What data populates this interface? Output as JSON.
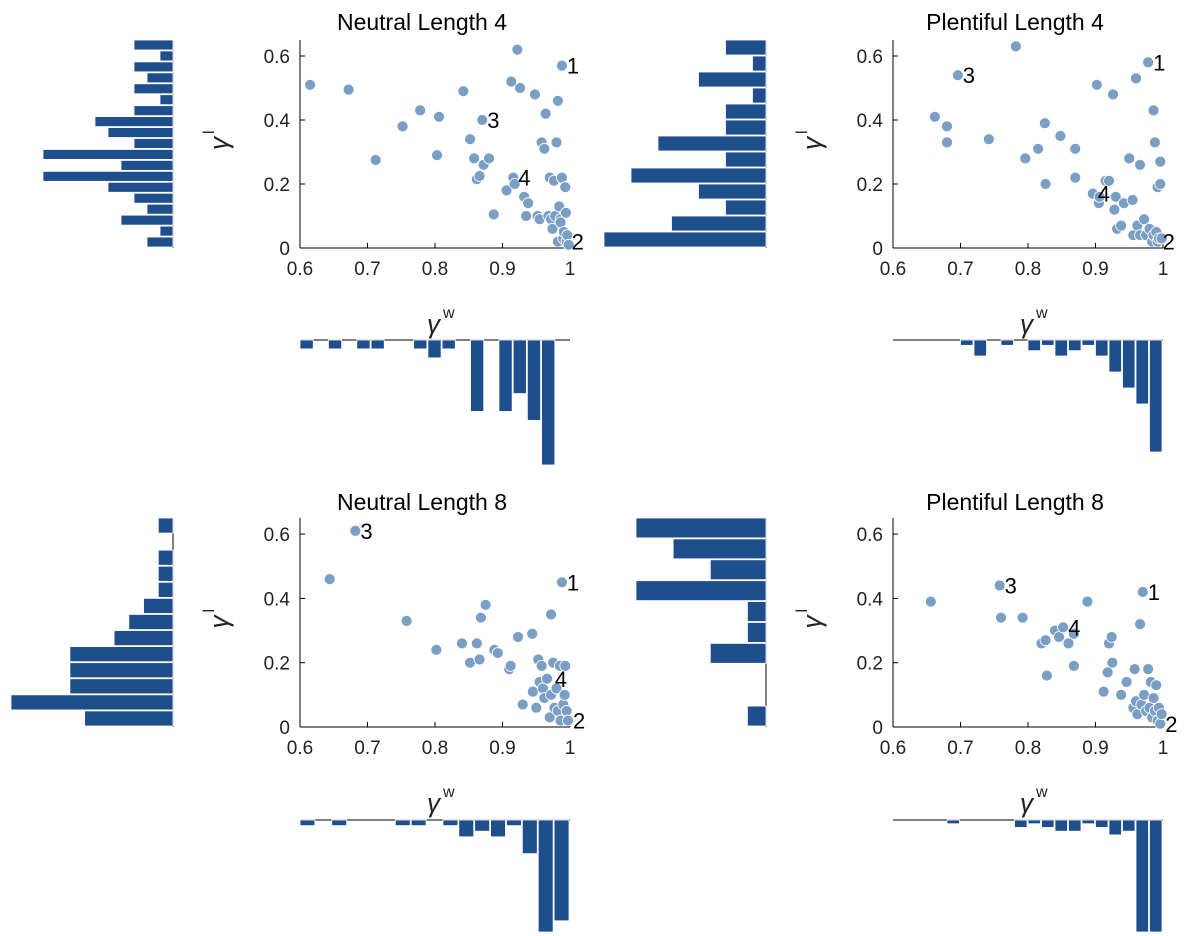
{
  "figure": {
    "panels": [
      {
        "title": "Neutral Length 4"
      },
      {
        "title": "Plentiful Length 4"
      },
      {
        "title": "Neutral Length 8"
      },
      {
        "title": "Plentiful Length 8"
      }
    ]
  },
  "chart_data": [
    {
      "type": "scatter",
      "title": "Neutral Length 4",
      "xlabel": "γ^w",
      "ylabel": "γ^l",
      "xlim": [
        0.6,
        1.0
      ],
      "ylim": [
        0,
        0.65
      ],
      "xticks": [
        "0.6",
        "0.7",
        "0.8",
        "0.9",
        "1"
      ],
      "yticks": [
        "0",
        "0.2",
        "0.4",
        "0.6"
      ],
      "grid": false,
      "marker_color": "#7b9fc4",
      "hist_color": "#1f4e8c",
      "points": [
        [
          0.615,
          0.51
        ],
        [
          0.672,
          0.495
        ],
        [
          0.712,
          0.275
        ],
        [
          0.752,
          0.38
        ],
        [
          0.778,
          0.43
        ],
        [
          0.803,
          0.29
        ],
        [
          0.806,
          0.41
        ],
        [
          0.842,
          0.49
        ],
        [
          0.852,
          0.34
        ],
        [
          0.858,
          0.28
        ],
        [
          0.862,
          0.215
        ],
        [
          0.866,
          0.225
        ],
        [
          0.87,
          0.4
        ],
        [
          0.872,
          0.26
        ],
        [
          0.88,
          0.28
        ],
        [
          0.887,
          0.105
        ],
        [
          0.906,
          0.18
        ],
        [
          0.913,
          0.52
        ],
        [
          0.916,
          0.22
        ],
        [
          0.918,
          0.2
        ],
        [
          0.922,
          0.62
        ],
        [
          0.926,
          0.5
        ],
        [
          0.932,
          0.16
        ],
        [
          0.935,
          0.1
        ],
        [
          0.938,
          0.14
        ],
        [
          0.948,
          0.48
        ],
        [
          0.952,
          0.1
        ],
        [
          0.955,
          0.09
        ],
        [
          0.958,
          0.33
        ],
        [
          0.962,
          0.31
        ],
        [
          0.964,
          0.42
        ],
        [
          0.968,
          0.1
        ],
        [
          0.97,
          0.22
        ],
        [
          0.972,
          0.09
        ],
        [
          0.974,
          0.06
        ],
        [
          0.976,
          0.21
        ],
        [
          0.978,
          0.1
        ],
        [
          0.98,
          0.33
        ],
        [
          0.982,
          0.46
        ],
        [
          0.982,
          0.02
        ],
        [
          0.984,
          0.13
        ],
        [
          0.986,
          0.09
        ],
        [
          0.986,
          0.08
        ],
        [
          0.988,
          0.57
        ],
        [
          0.988,
          0.22
        ],
        [
          0.99,
          0.03
        ],
        [
          0.991,
          0.05
        ],
        [
          0.993,
          0.19
        ],
        [
          0.994,
          0.11
        ],
        [
          0.995,
          0.02
        ],
        [
          0.996,
          0.04
        ],
        [
          0.998,
          0.01
        ]
      ],
      "annotations": [
        {
          "label": "1",
          "x": 0.988,
          "y": 0.57
        },
        {
          "label": "2",
          "x": 0.995,
          "y": 0.02
        },
        {
          "label": "3",
          "x": 0.87,
          "y": 0.4
        },
        {
          "label": "4",
          "x": 0.916,
          "y": 0.22
        }
      ],
      "hist_x": [
        1,
        0,
        1,
        0,
        1,
        1,
        0,
        0,
        1,
        2,
        1,
        0,
        8,
        0,
        8,
        6,
        9,
        14,
        0
      ],
      "hist_y": [
        3,
        1,
        3,
        2,
        3,
        1,
        3,
        6,
        5,
        3,
        10,
        4,
        10,
        5,
        3,
        2,
        4,
        1,
        2
      ]
    },
    {
      "type": "scatter",
      "title": "Plentiful Length 4",
      "xlabel": "γ^w",
      "ylabel": "γ^l",
      "xlim": [
        0.6,
        1.0
      ],
      "ylim": [
        0,
        0.65
      ],
      "xticks": [
        "0.6",
        "0.7",
        "0.8",
        "0.9",
        "1"
      ],
      "yticks": [
        "0",
        "0.2",
        "0.4",
        "0.6"
      ],
      "grid": false,
      "marker_color": "#7b9fc4",
      "hist_color": "#1f4e8c",
      "points": [
        [
          0.662,
          0.41
        ],
        [
          0.68,
          0.38
        ],
        [
          0.68,
          0.33
        ],
        [
          0.696,
          0.54
        ],
        [
          0.742,
          0.34
        ],
        [
          0.782,
          0.63
        ],
        [
          0.796,
          0.28
        ],
        [
          0.815,
          0.31
        ],
        [
          0.825,
          0.39
        ],
        [
          0.826,
          0.2
        ],
        [
          0.848,
          0.35
        ],
        [
          0.87,
          0.31
        ],
        [
          0.87,
          0.22
        ],
        [
          0.896,
          0.17
        ],
        [
          0.902,
          0.51
        ],
        [
          0.905,
          0.14
        ],
        [
          0.906,
          0.16
        ],
        [
          0.915,
          0.21
        ],
        [
          0.92,
          0.21
        ],
        [
          0.926,
          0.48
        ],
        [
          0.928,
          0.12
        ],
        [
          0.93,
          0.16
        ],
        [
          0.932,
          0.06
        ],
        [
          0.938,
          0.07
        ],
        [
          0.942,
          0.14
        ],
        [
          0.95,
          0.28
        ],
        [
          0.955,
          0.15
        ],
        [
          0.956,
          0.04
        ],
        [
          0.96,
          0.53
        ],
        [
          0.962,
          0.07
        ],
        [
          0.966,
          0.26
        ],
        [
          0.966,
          0.04
        ],
        [
          0.972,
          0.09
        ],
        [
          0.975,
          0.04
        ],
        [
          0.978,
          0.58
        ],
        [
          0.98,
          0.06
        ],
        [
          0.984,
          0.02
        ],
        [
          0.986,
          0.43
        ],
        [
          0.986,
          0.04
        ],
        [
          0.988,
          0.33
        ],
        [
          0.99,
          0.05
        ],
        [
          0.992,
          0.02
        ],
        [
          0.992,
          0.19
        ],
        [
          0.994,
          0.03
        ],
        [
          0.996,
          0.2
        ],
        [
          0.996,
          0.27
        ],
        [
          0.998,
          0.03
        ]
      ],
      "annotations": [
        {
          "label": "1",
          "x": 0.978,
          "y": 0.58
        },
        {
          "label": "2",
          "x": 0.992,
          "y": 0.02
        },
        {
          "label": "3",
          "x": 0.696,
          "y": 0.54
        },
        {
          "label": "4",
          "x": 0.896,
          "y": 0.17
        }
      ],
      "hist_x": [
        0,
        0,
        0,
        0,
        0,
        1,
        3,
        0,
        1,
        0,
        2,
        1,
        3,
        2,
        1,
        3,
        6,
        9,
        12,
        21
      ],
      "hist_y": [
        3,
        1,
        5,
        1,
        3,
        3,
        8,
        3,
        10,
        5,
        3,
        7,
        12
      ]
    },
    {
      "type": "scatter",
      "title": "Neutral Length 8",
      "xlabel": "γ^w",
      "ylabel": "γ^l",
      "xlim": [
        0.6,
        1.0
      ],
      "ylim": [
        0,
        0.65
      ],
      "xticks": [
        "0.6",
        "0.7",
        "0.8",
        "0.9",
        "1"
      ],
      "yticks": [
        "0",
        "0.2",
        "0.4",
        "0.6"
      ],
      "grid": false,
      "marker_color": "#7b9fc4",
      "hist_color": "#1f4e8c",
      "points": [
        [
          0.644,
          0.46
        ],
        [
          0.682,
          0.61
        ],
        [
          0.758,
          0.33
        ],
        [
          0.802,
          0.24
        ],
        [
          0.84,
          0.26
        ],
        [
          0.852,
          0.2
        ],
        [
          0.862,
          0.26
        ],
        [
          0.866,
          0.21
        ],
        [
          0.868,
          0.34
        ],
        [
          0.875,
          0.38
        ],
        [
          0.888,
          0.24
        ],
        [
          0.893,
          0.23
        ],
        [
          0.91,
          0.18
        ],
        [
          0.912,
          0.19
        ],
        [
          0.923,
          0.28
        ],
        [
          0.93,
          0.07
        ],
        [
          0.944,
          0.29
        ],
        [
          0.945,
          0.11
        ],
        [
          0.95,
          0.06
        ],
        [
          0.953,
          0.21
        ],
        [
          0.955,
          0.14
        ],
        [
          0.958,
          0.19
        ],
        [
          0.96,
          0.12
        ],
        [
          0.962,
          0.09
        ],
        [
          0.966,
          0.15
        ],
        [
          0.97,
          0.03
        ],
        [
          0.972,
          0.35
        ],
        [
          0.972,
          0.1
        ],
        [
          0.975,
          0.2
        ],
        [
          0.977,
          0.06
        ],
        [
          0.98,
          0.12
        ],
        [
          0.982,
          0.05
        ],
        [
          0.985,
          0.19
        ],
        [
          0.986,
          0.02
        ],
        [
          0.988,
          0.45
        ],
        [
          0.99,
          0.07
        ],
        [
          0.992,
          0.1
        ],
        [
          0.993,
          0.19
        ],
        [
          0.995,
          0.05
        ],
        [
          0.997,
          0.02
        ]
      ],
      "annotations": [
        {
          "label": "1",
          "x": 0.988,
          "y": 0.45
        },
        {
          "label": "2",
          "x": 0.997,
          "y": 0.02
        },
        {
          "label": "3",
          "x": 0.682,
          "y": 0.61
        },
        {
          "label": "4",
          "x": 0.97,
          "y": 0.15
        }
      ],
      "hist_x": [
        1,
        0,
        1,
        0,
        0,
        0,
        1,
        1,
        0,
        1,
        3,
        2,
        3,
        1,
        6,
        20,
        18
      ],
      "hist_y": [
        1,
        0,
        1,
        1,
        1,
        2,
        3,
        4,
        7,
        7,
        7,
        11,
        6
      ]
    },
    {
      "type": "scatter",
      "title": "Plentiful Length 8",
      "xlabel": "γ^w",
      "ylabel": "γ^l",
      "xlim": [
        0.6,
        1.0
      ],
      "ylim": [
        0,
        0.65
      ],
      "xticks": [
        "0.6",
        "0.7",
        "0.8",
        "0.9",
        "1"
      ],
      "yticks": [
        "0",
        "0.2",
        "0.4",
        "0.6"
      ],
      "grid": false,
      "marker_color": "#7b9fc4",
      "hist_color": "#1f4e8c",
      "points": [
        [
          0.656,
          0.39
        ],
        [
          0.758,
          0.44
        ],
        [
          0.76,
          0.34
        ],
        [
          0.792,
          0.34
        ],
        [
          0.82,
          0.26
        ],
        [
          0.826,
          0.27
        ],
        [
          0.828,
          0.16
        ],
        [
          0.84,
          0.3
        ],
        [
          0.846,
          0.28
        ],
        [
          0.852,
          0.31
        ],
        [
          0.86,
          0.26
        ],
        [
          0.868,
          0.19
        ],
        [
          0.868,
          0.29
        ],
        [
          0.888,
          0.39
        ],
        [
          0.912,
          0.11
        ],
        [
          0.918,
          0.17
        ],
        [
          0.92,
          0.26
        ],
        [
          0.924,
          0.28
        ],
        [
          0.925,
          0.2
        ],
        [
          0.938,
          0.1
        ],
        [
          0.946,
          0.14
        ],
        [
          0.956,
          0.06
        ],
        [
          0.958,
          0.18
        ],
        [
          0.96,
          0.08
        ],
        [
          0.962,
          0.04
        ],
        [
          0.966,
          0.32
        ],
        [
          0.968,
          0.07
        ],
        [
          0.97,
          0.42
        ],
        [
          0.972,
          0.1
        ],
        [
          0.975,
          0.05
        ],
        [
          0.978,
          0.18
        ],
        [
          0.98,
          0.06
        ],
        [
          0.982,
          0.14
        ],
        [
          0.984,
          0.03
        ],
        [
          0.986,
          0.09
        ],
        [
          0.988,
          0.05
        ],
        [
          0.99,
          0.13
        ],
        [
          0.992,
          0.02
        ],
        [
          0.994,
          0.06
        ],
        [
          0.996,
          0.01
        ],
        [
          0.998,
          0.04
        ]
      ],
      "annotations": [
        {
          "label": "1",
          "x": 0.97,
          "y": 0.42
        },
        {
          "label": "2",
          "x": 0.996,
          "y": 0.01
        },
        {
          "label": "3",
          "x": 0.758,
          "y": 0.44
        },
        {
          "label": "4",
          "x": 0.852,
          "y": 0.31
        }
      ],
      "hist_x": [
        0,
        0,
        0,
        0,
        1,
        0,
        0,
        0,
        0,
        2,
        1,
        2,
        3,
        3,
        1,
        2,
        4,
        3,
        30,
        30
      ],
      "hist_y": [
        7,
        5,
        3,
        7,
        1,
        1,
        3,
        0,
        0,
        1
      ]
    }
  ]
}
